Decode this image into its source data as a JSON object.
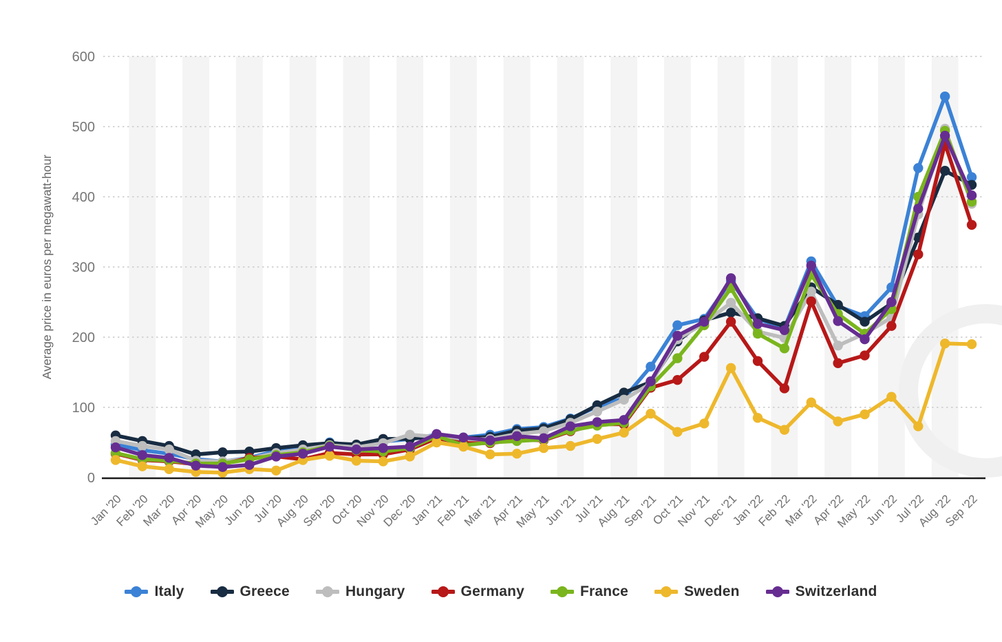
{
  "chart_data": {
    "type": "line",
    "title": "",
    "ylabel": "Average price in euros per megawatt-hour",
    "xlabel": "",
    "ylim": [
      0,
      600
    ],
    "yticks": [
      0,
      100,
      200,
      300,
      400,
      500,
      600
    ],
    "grid": "horizontal-dotted",
    "legend_position": "bottom-center",
    "categories": [
      "Jan '20",
      "Feb '20",
      "Mar '20",
      "Apr '20",
      "May '20",
      "Jun '20",
      "Jul '20",
      "Aug '20",
      "Sep '20",
      "Oct '20",
      "Nov '20",
      "Dec '20",
      "Jan '21",
      "Feb '21",
      "Mar '21",
      "Apr '21",
      "May '21",
      "Jun '21",
      "Jul '21",
      "Aug '21",
      "Sep '21",
      "Oct '21",
      "Nov '21",
      "Dec '21",
      "Jan '22",
      "Feb '22",
      "Mar '22",
      "Apr '22",
      "May '22",
      "Jun '22",
      "Jul '22",
      "Aug '22",
      "Sep '22"
    ],
    "series": [
      {
        "name": "Italy",
        "color": "#3b82d6",
        "values": [
          47,
          39,
          34,
          26,
          23,
          28,
          38,
          41,
          50,
          45,
          51,
          55,
          61,
          57,
          61,
          69,
          72,
          84,
          101,
          113,
          158,
          217,
          226,
          280,
          226,
          213,
          308,
          244,
          230,
          271,
          441,
          543,
          428
        ]
      },
      {
        "name": "Greece",
        "color": "#182c42",
        "values": [
          60,
          52,
          45,
          33,
          36,
          37,
          42,
          46,
          49,
          47,
          55,
          55,
          59,
          56,
          58,
          67,
          70,
          83,
          103,
          121,
          136,
          194,
          224,
          235,
          227,
          216,
          271,
          246,
          222,
          248,
          342,
          437,
          417
        ]
      },
      {
        "name": "Hungary",
        "color": "#bdbdbd",
        "values": [
          52,
          45,
          40,
          24,
          23,
          27,
          35,
          40,
          46,
          43,
          49,
          61,
          58,
          54,
          55,
          62,
          66,
          78,
          94,
          111,
          134,
          197,
          220,
          249,
          208,
          199,
          265,
          188,
          205,
          228,
          375,
          497,
          390
        ]
      },
      {
        "name": "Germany",
        "color": "#b71818",
        "values": [
          34,
          25,
          23,
          19,
          19,
          28,
          30,
          26,
          35,
          33,
          33,
          40,
          56,
          49,
          49,
          54,
          53,
          66,
          76,
          76,
          128,
          139,
          172,
          222,
          166,
          127,
          251,
          163,
          174,
          216,
          318,
          476,
          360
        ]
      },
      {
        "name": "France",
        "color": "#7ab51d",
        "values": [
          35,
          26,
          24,
          20,
          20,
          26,
          32,
          36,
          45,
          39,
          37,
          42,
          59,
          46,
          50,
          52,
          54,
          67,
          74,
          78,
          130,
          170,
          217,
          270,
          205,
          184,
          289,
          233,
          205,
          240,
          400,
          494,
          393
        ]
      },
      {
        "name": "Sweden",
        "color": "#eeb82c",
        "values": [
          25,
          16,
          12,
          8,
          7,
          12,
          10,
          25,
          31,
          24,
          23,
          30,
          50,
          44,
          33,
          34,
          42,
          45,
          55,
          64,
          91,
          65,
          77,
          156,
          85,
          68,
          107,
          80,
          90,
          115,
          73,
          191,
          190
        ]
      },
      {
        "name": "Switzerland",
        "color": "#662d91",
        "values": [
          43,
          32,
          28,
          17,
          15,
          18,
          30,
          34,
          44,
          40,
          42,
          44,
          62,
          57,
          53,
          59,
          56,
          73,
          79,
          82,
          137,
          202,
          222,
          284,
          219,
          210,
          302,
          223,
          197,
          250,
          383,
          487,
          402
        ]
      }
    ]
  },
  "axis": {
    "y_title": "Average price in euros per megawatt-hour"
  },
  "legend": {
    "items": [
      "Italy",
      "Greece",
      "Hungary",
      "Germany",
      "France",
      "Sweden",
      "Switzerland"
    ]
  },
  "colors": {
    "grid": "#c9c9c9",
    "baseline": "#1a1a1a",
    "stripe": "#f4f4f4",
    "tick_text": "#6f6f6f",
    "legend_text": "#2f2f2f",
    "watermark": "#f0f0f0"
  }
}
